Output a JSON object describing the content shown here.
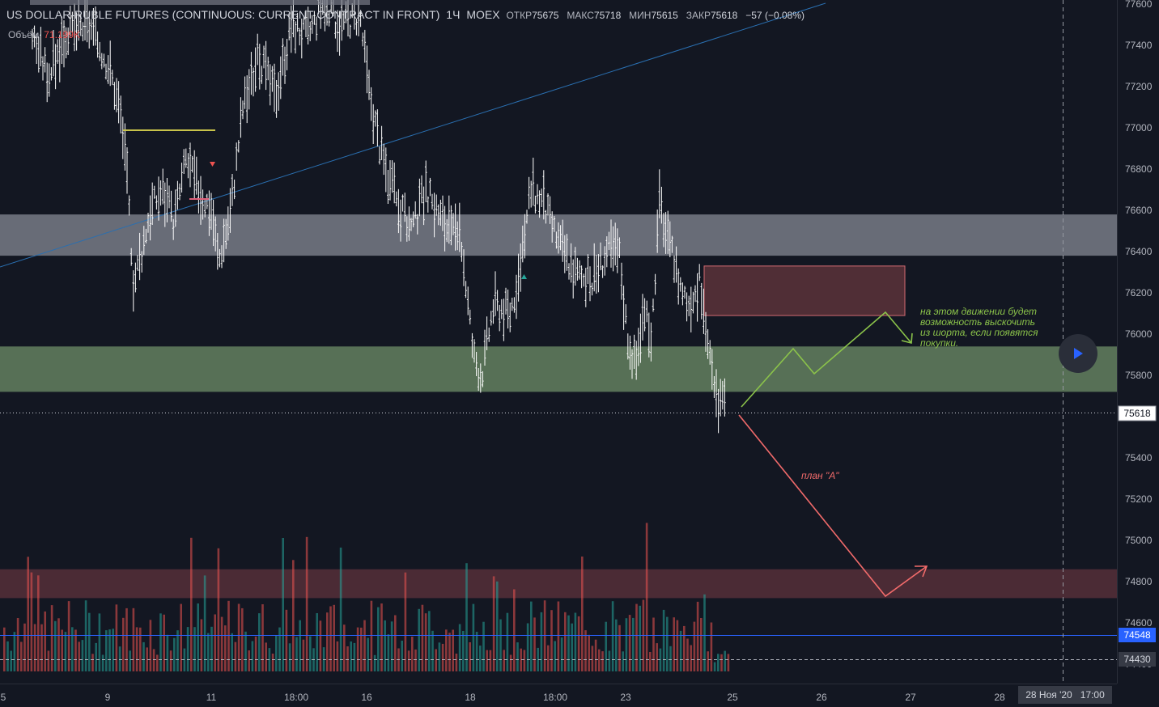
{
  "header": {
    "symbol": "US DOLLAR-RUBLE FUTURES (CONTINUOUS: CURRENT CONTRACT IN FRONT)",
    "interval": "1Ч",
    "exchange": "MOEX",
    "open_label": "ОТКР",
    "open": "75675",
    "high_label": "МАКС",
    "high": "75718",
    "low_label": "МИН",
    "low": "75615",
    "close_label": "ЗАКР",
    "close": "75618",
    "change": "−57 (−0.08%)"
  },
  "volume_legend": {
    "label": "Объём",
    "value": "71.199K"
  },
  "colors": {
    "background": "#131722",
    "up_volume": "#26a69a",
    "down_volume": "#ef5350",
    "support_zone": "#6f8f68",
    "resistance_zone": "#787b86",
    "target_zone": "#7a3d45",
    "plan_a": "#f26b6b",
    "plan_b": "#8bc34a"
  },
  "chart_data": {
    "type": "bar",
    "price_axis": {
      "ticks": [
        "77600",
        "77400",
        "77200",
        "77000",
        "76800",
        "76600",
        "76400",
        "76200",
        "76000",
        "75800",
        "75600",
        "75400",
        "75200",
        "75000",
        "74800",
        "74600",
        "74400"
      ],
      "range": [
        74310,
        77670
      ]
    },
    "time_axis": {
      "ticks": [
        "5",
        "9",
        "11",
        "18:00",
        "16",
        "18",
        "18:00",
        "23",
        "25",
        "26",
        "27",
        "28"
      ]
    },
    "price_labels": {
      "last": "75618",
      "level_blue": "74548",
      "level_dashed": "74430"
    },
    "time_badge": {
      "date": "28 Ноя '20",
      "time": "17:00"
    },
    "zones": [
      {
        "name": "resistance-zone",
        "low": 76380,
        "high": 76580
      },
      {
        "name": "support-zone",
        "low": 75720,
        "high": 75940
      },
      {
        "name": "sell-box",
        "low": 76090,
        "high": 76330
      },
      {
        "name": "target-zone",
        "low": 74720,
        "high": 74860
      }
    ],
    "annotations": {
      "plan_a": "план \"А\"",
      "plan_b": "на этом движении будет возможность выскочить из шорта, если появятся покупки."
    }
  }
}
